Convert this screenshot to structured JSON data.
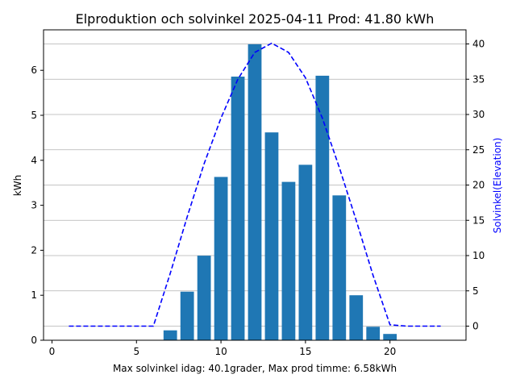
{
  "chart_data": {
    "type": "bar",
    "title": "Elproduktion och solvinkel 2025-04-11 Prod: 41.80 kWh",
    "xlabel": "Max solvinkel idag: 40.1grader, Max prod timme: 6.58kWh",
    "ylabel": "kWh",
    "y2label": "Solvinkel(Elevation)",
    "xlim": [
      -0.5,
      24.5
    ],
    "ylim": [
      0,
      6.9
    ],
    "y2lim": [
      -2,
      42
    ],
    "x_ticks": [
      0,
      5,
      10,
      15,
      20
    ],
    "y_ticks": [
      0,
      1,
      2,
      3,
      4,
      5,
      6
    ],
    "y2_ticks": [
      0,
      5,
      10,
      15,
      20,
      25,
      30,
      35,
      40
    ],
    "grid": "horizontal lines on elevation axis",
    "series": [
      {
        "kind": "bar",
        "axis": "left",
        "color": "#1f77b4",
        "points": [
          {
            "x": 7,
            "y": 0.22
          },
          {
            "x": 8,
            "y": 1.08
          },
          {
            "x": 9,
            "y": 1.88
          },
          {
            "x": 10,
            "y": 3.63
          },
          {
            "x": 11,
            "y": 5.86
          },
          {
            "x": 12,
            "y": 6.58
          },
          {
            "x": 13,
            "y": 4.62
          },
          {
            "x": 14,
            "y": 3.52
          },
          {
            "x": 15,
            "y": 3.9
          },
          {
            "x": 16,
            "y": 5.88
          },
          {
            "x": 17,
            "y": 3.22
          },
          {
            "x": 18,
            "y": 1.0
          },
          {
            "x": 19,
            "y": 0.3
          },
          {
            "x": 20,
            "y": 0.14
          }
        ]
      },
      {
        "kind": "line",
        "axis": "right",
        "style": "dashed",
        "color": "#0000ff",
        "points": [
          {
            "x": 1,
            "y": 0
          },
          {
            "x": 2,
            "y": 0
          },
          {
            "x": 3,
            "y": 0
          },
          {
            "x": 4,
            "y": 0
          },
          {
            "x": 5,
            "y": 0
          },
          {
            "x": 6,
            "y": 0
          },
          {
            "x": 7,
            "y": 7.5
          },
          {
            "x": 8,
            "y": 15.5
          },
          {
            "x": 9,
            "y": 23
          },
          {
            "x": 10,
            "y": 29.5
          },
          {
            "x": 11,
            "y": 35
          },
          {
            "x": 12,
            "y": 38.8
          },
          {
            "x": 13,
            "y": 40.1
          },
          {
            "x": 14,
            "y": 38.8
          },
          {
            "x": 15,
            "y": 35.2
          },
          {
            "x": 16,
            "y": 29.5
          },
          {
            "x": 17,
            "y": 22.5
          },
          {
            "x": 18,
            "y": 15
          },
          {
            "x": 19,
            "y": 7.2
          },
          {
            "x": 20,
            "y": 0.2
          },
          {
            "x": 21,
            "y": 0
          },
          {
            "x": 22,
            "y": 0
          },
          {
            "x": 23,
            "y": 0
          }
        ]
      }
    ]
  }
}
